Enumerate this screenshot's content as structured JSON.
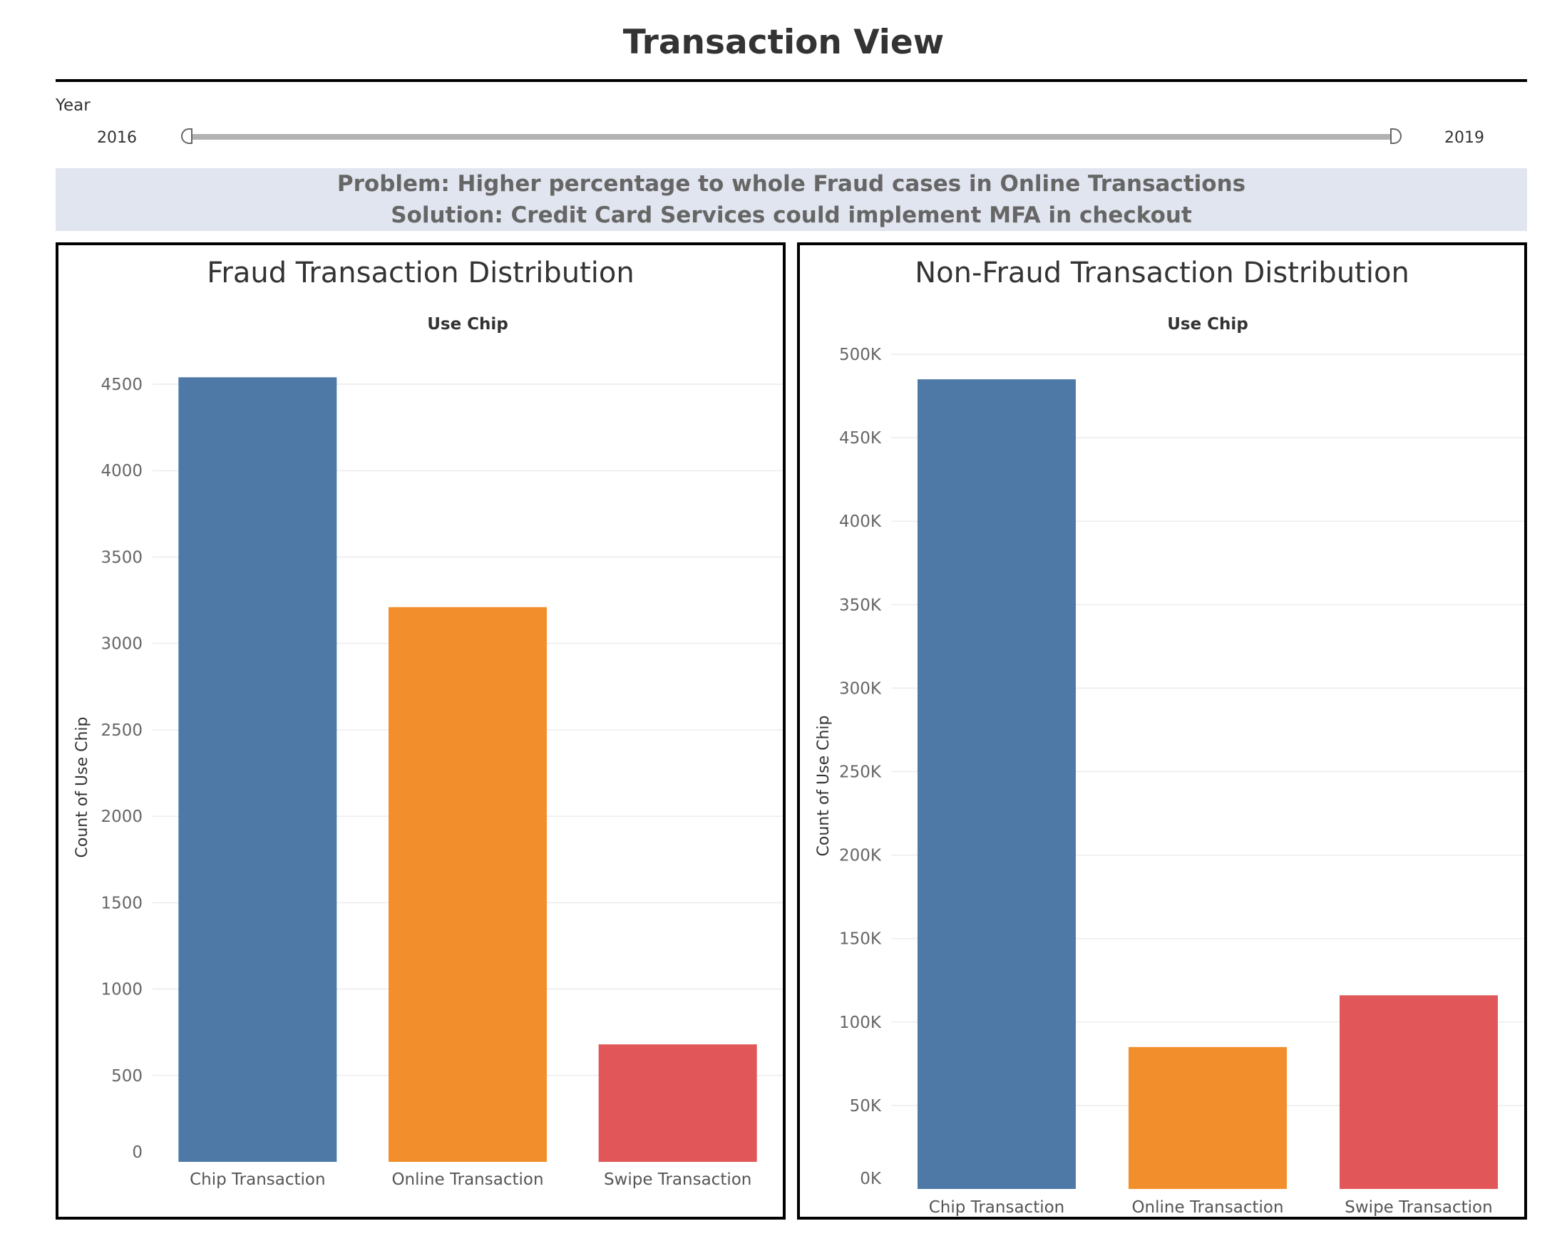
{
  "header": {
    "title": "Transaction View"
  },
  "filter": {
    "label": "Year",
    "min_label": "2016",
    "max_label": "2019",
    "min": 2016,
    "max": 2019
  },
  "annotation": {
    "problem": "Problem: Higher percentage to whole Fraud cases in Online Transactions",
    "solution": "Solution: Credit Card Services could implement MFA in checkout"
  },
  "colors": {
    "chip": "#4e79a7",
    "online": "#f28e2b",
    "swipe": "#e15759",
    "annotation_bg": "#e1e5ef"
  },
  "chart_data": [
    {
      "type": "bar",
      "title": "Fraud Transaction Distribution",
      "column_header": "Use Chip",
      "ylabel": "Count of Use Chip",
      "xlabel": "",
      "categories": [
        "Chip Transaction",
        "Online Transaction",
        "Swipe Transaction"
      ],
      "values": [
        4540,
        3210,
        680
      ],
      "colors": [
        "#4e79a7",
        "#f28e2b",
        "#e15759"
      ],
      "ylim": [
        0,
        4700
      ],
      "yticks": [
        0,
        500,
        1000,
        1500,
        2000,
        2500,
        3000,
        3500,
        4000,
        4500
      ],
      "ytick_labels": [
        "0",
        "500",
        "1000",
        "1500",
        "2000",
        "2500",
        "3000",
        "3500",
        "4000",
        "4500"
      ],
      "grid": true,
      "legend": "none"
    },
    {
      "type": "bar",
      "title": "Non-Fraud Transaction Distribution",
      "column_header": "Use Chip",
      "ylabel": "Count of Use Chip",
      "xlabel": "",
      "categories": [
        "Chip Transaction",
        "Online Transaction",
        "Swipe Transaction"
      ],
      "values": [
        485000,
        85000,
        116000
      ],
      "colors": [
        "#4e79a7",
        "#f28e2b",
        "#e15759"
      ],
      "ylim": [
        0,
        500000
      ],
      "yticks": [
        0,
        50000,
        100000,
        150000,
        200000,
        250000,
        300000,
        350000,
        400000,
        450000,
        500000
      ],
      "ytick_labels": [
        "0K",
        "50K",
        "100K",
        "150K",
        "200K",
        "250K",
        "300K",
        "350K",
        "400K",
        "450K",
        "500K"
      ],
      "grid": true,
      "legend": "none"
    }
  ]
}
